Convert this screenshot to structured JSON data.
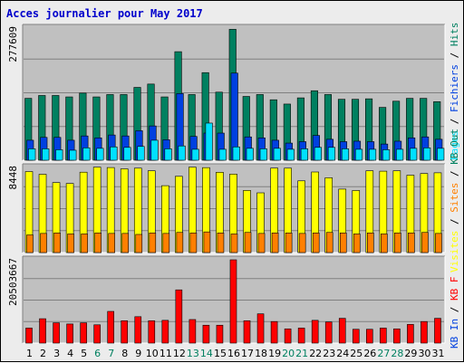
{
  "chart_data": {
    "type": "bar",
    "title": "Acces journalier pour May 2017",
    "categories": [
      "1",
      "2",
      "3",
      "4",
      "5",
      "6",
      "7",
      "8",
      "9",
      "10",
      "11",
      "12",
      "13",
      "14",
      "15",
      "16",
      "17",
      "18",
      "19",
      "20",
      "21",
      "22",
      "23",
      "24",
      "25",
      "26",
      "27",
      "28",
      "29",
      "30",
      "31"
    ],
    "weekend_days": [
      "6",
      "7",
      "13",
      "14",
      "20",
      "21",
      "27",
      "28"
    ],
    "panels": [
      {
        "name": "pages-files-hits",
        "max_label": "277609",
        "max_value": 277609,
        "series": [
          {
            "name": "Hits",
            "color": "#008060",
            "values": [
              130000,
              136000,
              136000,
              133000,
              141000,
              133000,
              138000,
              138000,
              153000,
              160000,
              133000,
              228000,
              138000,
              184000,
              143000,
              275000,
              134000,
              138000,
              127000,
              118000,
              131000,
              146000,
              138000,
              128000,
              128000,
              129000,
              111000,
              124000,
              130000,
              130000,
              123000
            ]
          },
          {
            "name": "Fichiers",
            "color": "#0040e0",
            "values": [
              42000,
              48000,
              48000,
              42000,
              51000,
              47000,
              53000,
              51000,
              62000,
              72000,
              43000,
              140000,
              50000,
              57000,
              57000,
              183000,
              49000,
              47000,
              42000,
              36000,
              39000,
              52000,
              44000,
              39000,
              40000,
              39000,
              34000,
              40000,
              47000,
              49000,
              44000
            ]
          },
          {
            "name": "Pages",
            "color": "#00e0ff",
            "values": [
              24000,
              24000,
              22000,
              21000,
              26000,
              25000,
              28000,
              27000,
              29000,
              42000,
              24000,
              30000,
              23000,
              78000,
              23000,
              28000,
              25000,
              24000,
              25000,
              23000,
              24000,
              27000,
              27000,
              24000,
              23000,
              23000,
              22000,
              23000,
              25000,
              26000,
              25000
            ]
          }
        ]
      },
      {
        "name": "visits-sites",
        "max_label": "8448",
        "max_value": 8448,
        "series": [
          {
            "name": "Visites",
            "color": "#ffff00",
            "values": [
              8040,
              7770,
              6950,
              6860,
              7980,
              8480,
              8440,
              8310,
              8380,
              8120,
              6640,
              7570,
              8480,
              8430,
              7970,
              7790,
              6170,
              5930,
              8390,
              8380,
              7120,
              8000,
              7420,
              6300,
              6160,
              8120,
              8080,
              8120,
              7680,
              7850,
              7920
            ]
          },
          {
            "name": "Sites",
            "color": "#ff8000",
            "values": [
              1750,
              1900,
              1950,
              1850,
              1850,
              1950,
              1900,
              1900,
              1800,
              1950,
              1900,
              2000,
              1950,
              2050,
              1950,
              1850,
              2000,
              1900,
              1950,
              1950,
              1900,
              1950,
              2000,
              1950,
              1850,
              1950,
              1850,
              1950,
              1950,
              2000,
              1900
            ]
          }
        ]
      },
      {
        "name": "kb",
        "max_label": "20503667",
        "max_value": 20503667,
        "series": [
          {
            "name": "KB F",
            "color": "#ff0000",
            "values": [
              3700000,
              6000000,
              5000000,
              4700000,
              5000000,
              4500000,
              7800000,
              5500000,
              6500000,
              5500000,
              5600000,
              13100000,
              5800000,
              4400000,
              4400000,
              20503667,
              5500000,
              7200000,
              5300000,
              3500000,
              3700000,
              5600000,
              5200000,
              6100000,
              3400000,
              3400000,
              3700000,
              3500000,
              4600000,
              5300000,
              6100000
            ]
          }
        ]
      }
    ],
    "legend_right_top": [
      "Pages",
      "Fichiers",
      "Hits"
    ],
    "legend_right_middle": [
      "Visites",
      "Sites",
      "KB Out"
    ],
    "legend_right_bottom": [
      "KB In",
      "KB F"
    ],
    "legend_colors": {
      "Hits": "#008060",
      "Fichiers": "#0040e0",
      "Pages": "#00e0ff",
      "Visites": "#ffff00",
      "Sites": "#ff8000",
      "KB F": "#ff0000",
      "KB In": "#0040e0",
      "KB Out": "#008060",
      "sep": "#000000"
    }
  }
}
